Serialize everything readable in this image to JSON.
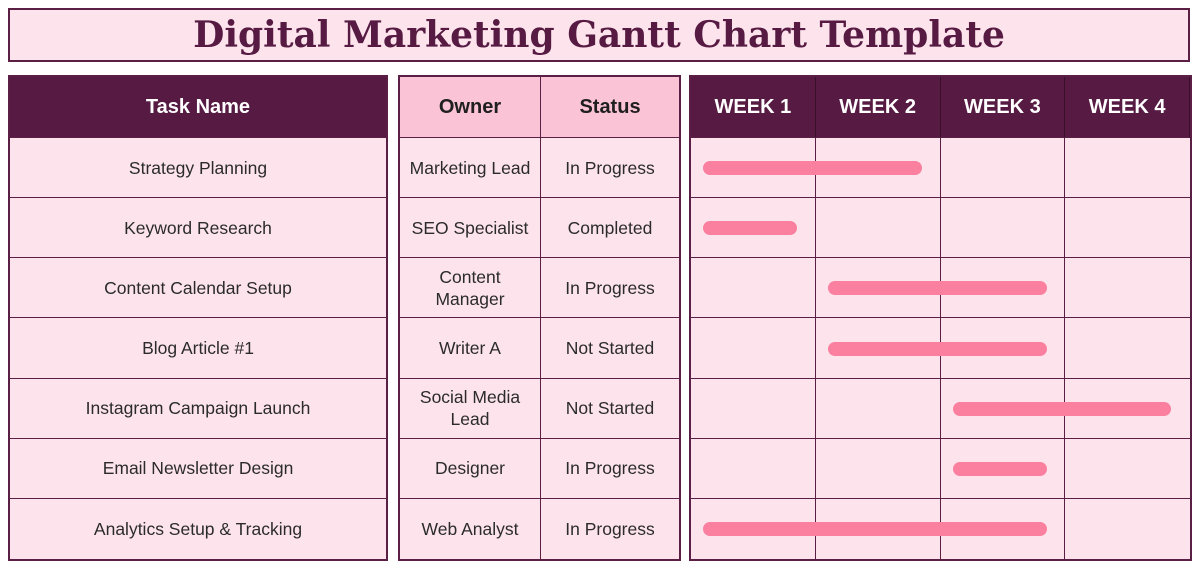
{
  "title": "Digital Marketing Gantt Chart Template",
  "headers": {
    "task": "Task Name",
    "owner": "Owner",
    "status": "Status",
    "weeks": [
      "WEEK 1",
      "WEEK 2",
      "WEEK 3",
      "WEEK 4"
    ]
  },
  "tasks": [
    {
      "name": "Strategy Planning",
      "owner": "Marketing Lead",
      "status": "In Progress",
      "start_week": 1.1,
      "end_week": 2.85
    },
    {
      "name": "Keyword Research",
      "owner": "SEO Specialist",
      "status": "Completed",
      "start_week": 1.1,
      "end_week": 1.85
    },
    {
      "name": "Content Calendar Setup",
      "owner": "Content Manager",
      "status": "In Progress",
      "start_week": 2.1,
      "end_week": 3.85
    },
    {
      "name": "Blog Article #1",
      "owner": "Writer A",
      "status": "Not Started",
      "start_week": 2.1,
      "end_week": 3.85
    },
    {
      "name": "Instagram Campaign Launch",
      "owner": "Social Media Lead",
      "status": "Not Started",
      "start_week": 3.1,
      "end_week": 4.85
    },
    {
      "name": "Email Newsletter Design",
      "owner": "Designer",
      "status": "In Progress",
      "start_week": 3.1,
      "end_week": 3.85
    },
    {
      "name": "Analytics Setup & Tracking",
      "owner": "Web Analyst",
      "status": "In Progress",
      "start_week": 1.1,
      "end_week": 3.85
    }
  ],
  "colors": {
    "header_dark": "#561a43",
    "header_pink": "#fbc3d6",
    "row_bg": "#fde4ec",
    "bar": "#fb7f9f"
  }
}
